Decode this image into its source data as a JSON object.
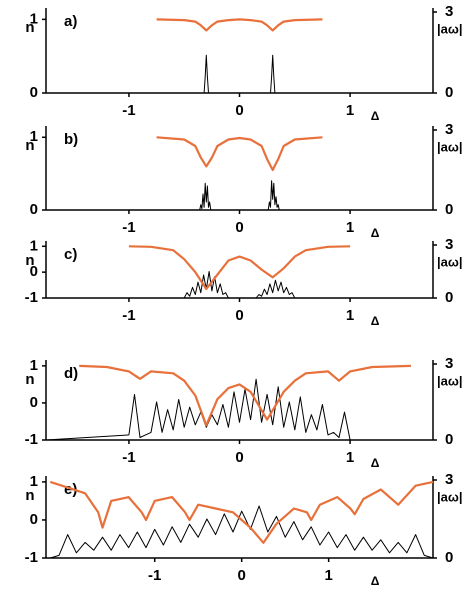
{
  "chart_data": [
    {
      "type": "line",
      "label": "a)",
      "ylabel": "n",
      "y2label": "|aω|",
      "xlabel": "Δ",
      "xlim": [
        -1.75,
        1.75
      ],
      "xticks": [
        -1,
        0,
        1
      ],
      "ylim": [
        0,
        1.1
      ],
      "yticks": [
        0,
        1
      ],
      "y2lim": [
        0,
        3
      ],
      "y2ticks": [
        0,
        3
      ],
      "series": [
        {
          "color": "#e8703a",
          "x": [
            -0.75,
            -0.5,
            -0.4,
            -0.35,
            -0.3,
            -0.25,
            -0.2,
            -0.1,
            0,
            0.1,
            0.2,
            0.25,
            0.3,
            0.35,
            0.4,
            0.5,
            0.75
          ],
          "values": [
            1,
            0.99,
            0.97,
            0.92,
            0.85,
            0.92,
            0.97,
            0.99,
            1,
            0.99,
            0.97,
            0.92,
            0.85,
            0.92,
            0.97,
            0.99,
            1
          ]
        },
        {
          "color": "#000000",
          "axis": "y2",
          "x": [
            -1.75,
            -0.32,
            -0.31,
            -0.3,
            -0.29,
            -0.28,
            0.28,
            0.29,
            0.3,
            0.31,
            0.32,
            1.75
          ],
          "values": [
            0,
            0,
            0.6,
            1.4,
            0.6,
            0,
            0,
            0.6,
            1.4,
            0.6,
            0,
            0
          ]
        }
      ]
    },
    {
      "type": "line",
      "label": "b)",
      "ylabel": "n",
      "y2label": "|aω|",
      "xlabel": "Δ",
      "xlim": [
        -1.75,
        1.75
      ],
      "xticks": [
        -1,
        0,
        1
      ],
      "ylim": [
        0,
        1.1
      ],
      "yticks": [
        0,
        1
      ],
      "y2lim": [
        0,
        3
      ],
      "y2ticks": [
        0,
        3
      ],
      "series": [
        {
          "color": "#e8703a",
          "x": [
            -0.75,
            -0.5,
            -0.4,
            -0.35,
            -0.3,
            -0.25,
            -0.2,
            -0.1,
            0,
            0.1,
            0.2,
            0.25,
            0.3,
            0.35,
            0.4,
            0.5,
            0.75
          ],
          "values": [
            1,
            0.97,
            0.88,
            0.72,
            0.6,
            0.72,
            0.88,
            0.97,
            0.99,
            0.97,
            0.88,
            0.7,
            0.55,
            0.7,
            0.88,
            0.97,
            1
          ]
        },
        {
          "color": "#000000",
          "axis": "y2",
          "x": [
            -1.75,
            -0.36,
            -0.35,
            -0.34,
            -0.33,
            -0.32,
            -0.31,
            -0.3,
            -0.29,
            -0.28,
            -0.27,
            -0.26,
            0.26,
            0.27,
            0.28,
            0.29,
            0.3,
            0.31,
            0.32,
            0.33,
            0.34,
            0.35,
            0.36,
            1.75
          ],
          "values": [
            0,
            0,
            0.2,
            0.05,
            0.6,
            0.1,
            1.0,
            0.3,
            0.9,
            0.1,
            0.3,
            0,
            0,
            0.3,
            0.1,
            1.1,
            0.4,
            1.0,
            0.2,
            0.5,
            0.1,
            0.2,
            0,
            0
          ]
        }
      ]
    },
    {
      "type": "line",
      "label": "c)",
      "ylabel": "n",
      "y2label": "|aω|",
      "xlabel": "Δ",
      "xlim": [
        -1.75,
        1.75
      ],
      "xticks": [
        -1,
        0,
        1
      ],
      "ylim": [
        -1,
        1.05
      ],
      "yticks": [
        -1,
        0,
        1
      ],
      "y2lim": [
        0,
        3
      ],
      "y2ticks": [
        0,
        3
      ],
      "series": [
        {
          "color": "#e8703a",
          "x": [
            -1,
            -0.8,
            -0.6,
            -0.5,
            -0.4,
            -0.3,
            -0.2,
            -0.1,
            0,
            0.1,
            0.2,
            0.3,
            0.4,
            0.5,
            0.6,
            0.8,
            1
          ],
          "values": [
            1,
            0.98,
            0.85,
            0.5,
            0,
            -0.65,
            -0.1,
            0.45,
            0.6,
            0.45,
            0.1,
            -0.2,
            0.15,
            0.6,
            0.85,
            0.98,
            1
          ]
        },
        {
          "color": "#000000",
          "axis": "y2",
          "x": [
            -1.75,
            -0.5,
            -0.475,
            -0.45,
            -0.425,
            -0.4,
            -0.375,
            -0.35,
            -0.325,
            -0.3,
            -0.275,
            -0.25,
            -0.225,
            -0.2,
            -0.175,
            -0.15,
            -0.125,
            -0.1,
            0.15,
            0.175,
            0.2,
            0.225,
            0.25,
            0.275,
            0.3,
            0.325,
            0.35,
            0.375,
            0.4,
            0.425,
            0.45,
            0.475,
            0.5,
            1.75
          ],
          "values": [
            0,
            0,
            0.3,
            0.1,
            0.6,
            0.2,
            0.9,
            0.3,
            1.3,
            0.5,
            1.5,
            0.4,
            1.2,
            0.3,
            0.8,
            0.2,
            0.3,
            0,
            0,
            0.2,
            0.1,
            0.5,
            0.2,
            0.8,
            0.3,
            1.0,
            0.4,
            0.9,
            0.3,
            0.6,
            0.2,
            0.3,
            0,
            0
          ]
        }
      ]
    },
    {
      "type": "line",
      "label": "d)",
      "ylabel": "n",
      "y2label": "|aω|",
      "xlabel": "Δ",
      "xlim": [
        -1.75,
        1.75
      ],
      "xticks": [
        -1,
        0,
        1
      ],
      "ylim": [
        -1,
        1.05
      ],
      "yticks": [
        -1,
        0,
        1
      ],
      "y2lim": [
        0,
        3
      ],
      "y2ticks": [
        0,
        3
      ],
      "series": [
        {
          "color": "#e8703a",
          "x": [
            -1.45,
            -1.2,
            -1.0,
            -0.9,
            -0.8,
            -0.6,
            -0.5,
            -0.4,
            -0.3,
            -0.2,
            -0.1,
            0,
            0.1,
            0.2,
            0.25,
            0.3,
            0.4,
            0.5,
            0.6,
            0.8,
            0.9,
            1.0,
            1.2,
            1.55
          ],
          "values": [
            1,
            0.97,
            0.85,
            0.65,
            0.85,
            0.8,
            0.6,
            0.2,
            -0.6,
            0.1,
            0.4,
            0.5,
            0.3,
            -0.2,
            -0.45,
            -0.2,
            0.3,
            0.6,
            0.8,
            0.85,
            0.6,
            0.85,
            0.97,
            1
          ]
        },
        {
          "color": "#000000",
          "axis": "y2",
          "x": [
            -1.75,
            -1,
            -0.95,
            -0.9,
            -0.85,
            -0.8,
            -0.75,
            -0.7,
            -0.65,
            -0.6,
            -0.55,
            -0.5,
            -0.45,
            -0.4,
            -0.35,
            -0.3,
            -0.25,
            -0.2,
            -0.15,
            -0.1,
            -0.05,
            0,
            0.05,
            0.1,
            0.15,
            0.2,
            0.25,
            0.3,
            0.35,
            0.4,
            0.45,
            0.5,
            0.55,
            0.6,
            0.65,
            0.7,
            0.75,
            0.8,
            0.85,
            0.9,
            0.95,
            1,
            1.75
          ],
          "values": [
            0,
            0.2,
            1.8,
            0.1,
            0.2,
            0.3,
            1.5,
            0.3,
            1.2,
            0.4,
            1.6,
            0.5,
            1.3,
            0.6,
            1.1,
            0.5,
            1.0,
            0.6,
            1.4,
            0.5,
            1.9,
            0.7,
            2.0,
            0.8,
            2.4,
            0.7,
            1.8,
            0.6,
            2.1,
            0.5,
            1.5,
            0.4,
            1.7,
            0.3,
            1.0,
            0.4,
            1.4,
            0.2,
            0.3,
            0.1,
            1.1,
            0,
            0
          ]
        }
      ]
    },
    {
      "type": "line",
      "label": "e)",
      "ylabel": "n",
      "y2label": "|aω|",
      "xlabel": "Δ",
      "xlim": [
        -2.25,
        2.2
      ],
      "xticks": [
        -1,
        0,
        1
      ],
      "ylim": [
        -1,
        1.05
      ],
      "yticks": [
        -1,
        0,
        1
      ],
      "y2lim": [
        0,
        3
      ],
      "y2ticks": [
        0,
        3
      ],
      "series": [
        {
          "color": "#e8703a",
          "x": [
            -2.2,
            -2.0,
            -1.8,
            -1.65,
            -1.6,
            -1.5,
            -1.3,
            -1.15,
            -1.1,
            -1.0,
            -0.8,
            -0.65,
            -0.6,
            -0.5,
            -0.3,
            -0.1,
            0,
            0.1,
            0.25,
            0.4,
            0.6,
            0.75,
            0.8,
            0.9,
            1.1,
            1.25,
            1.3,
            1.4,
            1.6,
            1.75,
            1.8,
            2.0,
            2.2
          ],
          "values": [
            1,
            0.85,
            0.7,
            0.2,
            -0.2,
            0.5,
            0.6,
            0.2,
            0.0,
            0.5,
            0.6,
            0.2,
            0.0,
            0.4,
            0.3,
            0.2,
            0.0,
            -0.2,
            -0.6,
            -0.1,
            0.3,
            0.2,
            0.0,
            0.4,
            0.6,
            0.3,
            0.15,
            0.55,
            0.8,
            0.5,
            0.4,
            0.9,
            1
          ]
        },
        {
          "color": "#000000",
          "axis": "y2",
          "x": [
            -2.2,
            -2.1,
            -2.0,
            -1.9,
            -1.8,
            -1.7,
            -1.6,
            -1.5,
            -1.4,
            -1.3,
            -1.2,
            -1.1,
            -1.0,
            -0.9,
            -0.8,
            -0.7,
            -0.6,
            -0.5,
            -0.4,
            -0.3,
            -0.2,
            -0.1,
            0,
            0.1,
            0.2,
            0.3,
            0.4,
            0.5,
            0.6,
            0.7,
            0.8,
            0.9,
            1.0,
            1.1,
            1.2,
            1.3,
            1.4,
            1.5,
            1.6,
            1.7,
            1.8,
            1.9,
            2.0,
            2.1,
            2.2
          ],
          "values": [
            0,
            0.1,
            0.9,
            0.2,
            0.6,
            0.3,
            0.8,
            0.3,
            0.9,
            0.4,
            1.0,
            0.4,
            1.1,
            0.5,
            1.2,
            0.6,
            1.3,
            0.8,
            1.5,
            0.9,
            1.7,
            1.0,
            1.8,
            1.1,
            2.0,
            1.0,
            1.6,
            0.8,
            1.4,
            0.7,
            1.2,
            0.5,
            1.0,
            0.4,
            0.9,
            0.3,
            0.8,
            0.3,
            0.7,
            0.2,
            0.6,
            0.2,
            0.9,
            0.1,
            0
          ]
        }
      ]
    }
  ]
}
